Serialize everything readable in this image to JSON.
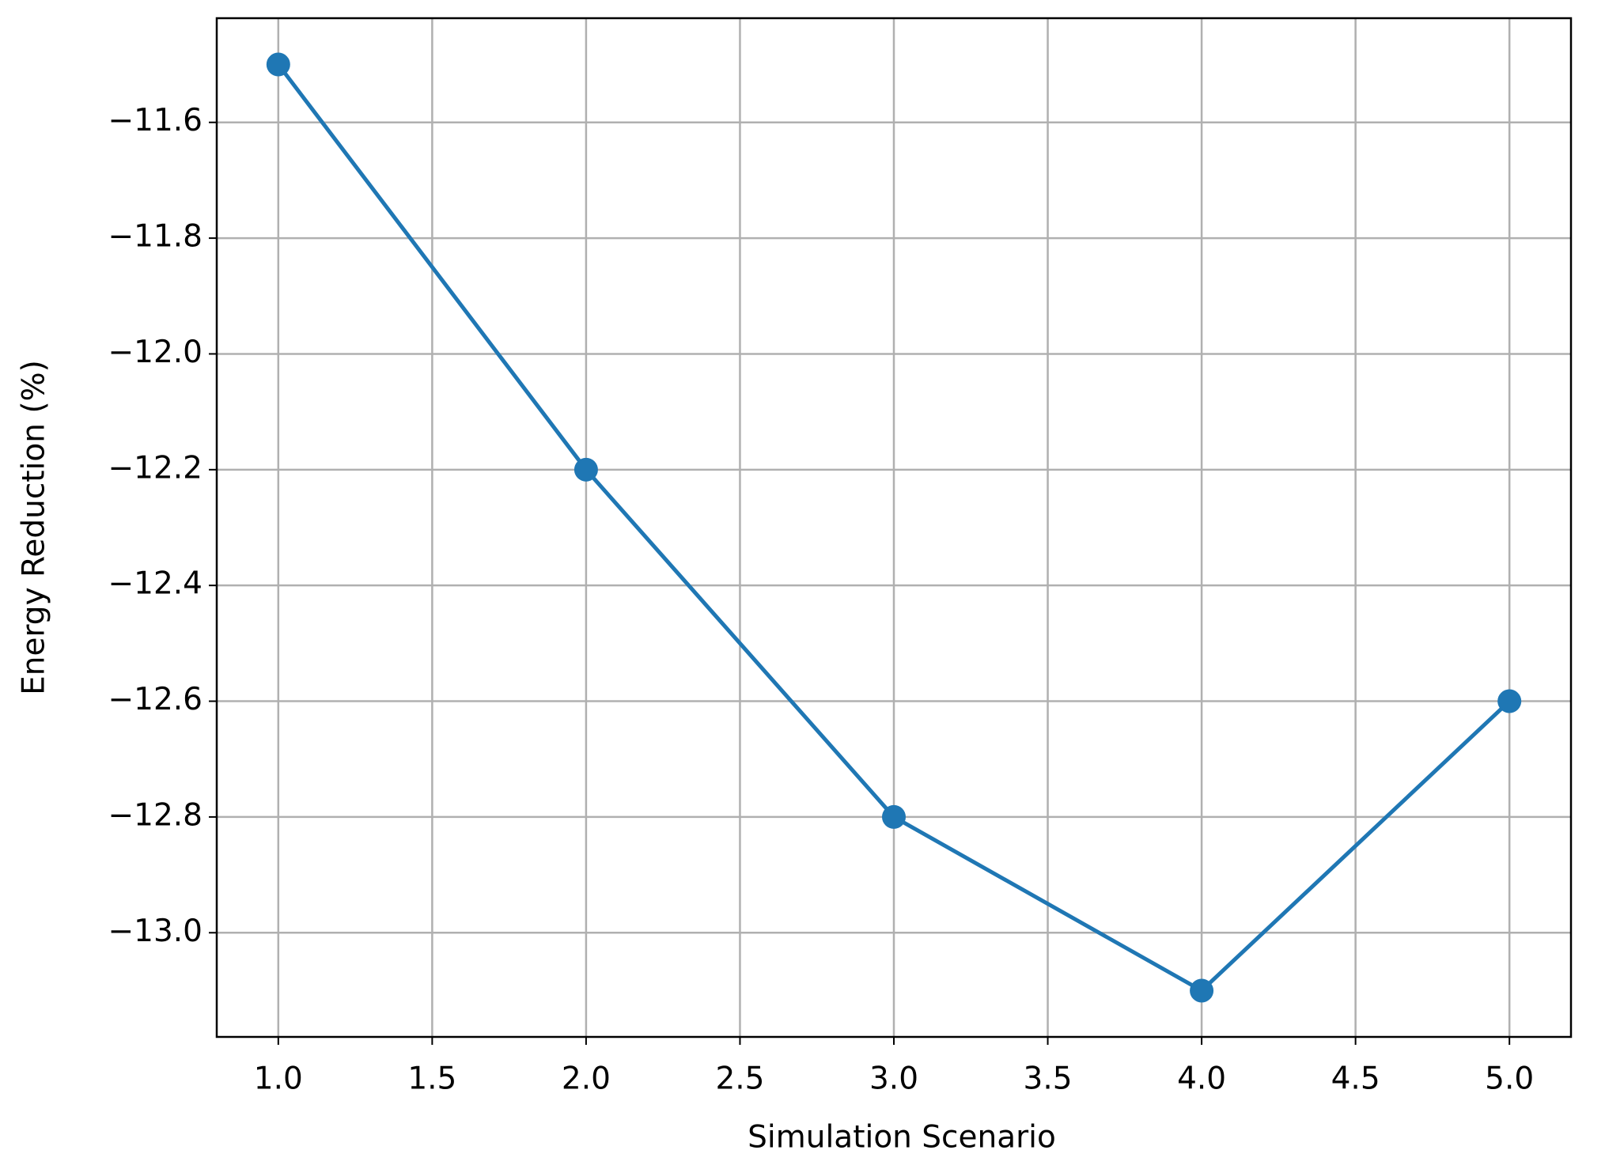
{
  "chart_data": {
    "type": "line",
    "x_label": "Simulation Scenario",
    "y_label": "Energy Reduction (%)",
    "x": [
      1,
      2,
      3,
      4,
      5
    ],
    "values": [
      -11.5,
      -12.2,
      -12.8,
      -13.1,
      -12.6
    ],
    "color": "#1f77b4",
    "marker": true,
    "grid": true,
    "xlim": [
      0.8,
      5.2
    ],
    "ylim": [
      -13.18,
      -11.42
    ],
    "xticks": [
      {
        "value": 1,
        "label": "1.0"
      },
      {
        "value": 1.5,
        "label": "1.5"
      },
      {
        "value": 2,
        "label": "2.0"
      },
      {
        "value": 2.5,
        "label": "2.5"
      },
      {
        "value": 3,
        "label": "3.0"
      },
      {
        "value": 3.5,
        "label": "3.5"
      },
      {
        "value": 4,
        "label": "4.0"
      },
      {
        "value": 4.5,
        "label": "4.5"
      },
      {
        "value": 5,
        "label": "5.0"
      }
    ],
    "yticks": [
      {
        "value": -13.0,
        "label": "−13.0"
      },
      {
        "value": -12.8,
        "label": "−12.8"
      },
      {
        "value": -12.6,
        "label": "−12.6"
      },
      {
        "value": -12.4,
        "label": "−12.4"
      },
      {
        "value": -12.2,
        "label": "−12.2"
      },
      {
        "value": -12.0,
        "label": "−12.0"
      },
      {
        "value": -11.8,
        "label": "−11.8"
      },
      {
        "value": -11.6,
        "label": "−11.6"
      }
    ]
  }
}
